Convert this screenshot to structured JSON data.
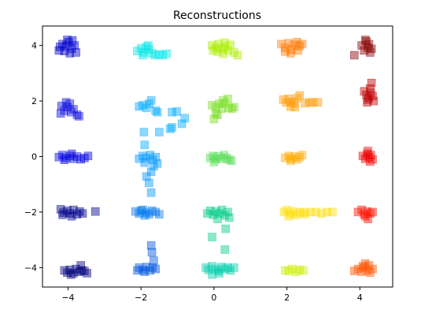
{
  "chart_data": {
    "type": "scatter",
    "title": "Reconstructions",
    "xlabel": "",
    "ylabel": "",
    "xlim": [
      -4.7,
      4.9
    ],
    "ylim": [
      -4.7,
      4.7
    ],
    "xticks": [
      -4,
      -2,
      0,
      2,
      4
    ],
    "yticks": [
      -4,
      -2,
      0,
      2,
      4
    ],
    "xtick_labels": [
      "−4",
      "−2",
      "0",
      "2",
      "4"
    ],
    "ytick_labels": [
      "−4",
      "−2",
      "0",
      "2",
      "4"
    ],
    "grid": false,
    "marker": "square",
    "marker_alpha": 0.45,
    "clusters": [
      {
        "color": "#0000cc",
        "points": [
          [
            -4.22,
            3.95
          ],
          [
            -4.15,
            4.05
          ],
          [
            -4.05,
            3.98
          ],
          [
            -3.98,
            4.12
          ],
          [
            -3.9,
            3.88
          ],
          [
            -3.82,
            4.0
          ],
          [
            -4.1,
            3.8
          ],
          [
            -3.95,
            3.72
          ],
          [
            -3.78,
            3.75
          ],
          [
            -4.25,
            3.82
          ],
          [
            -4.02,
            4.2
          ],
          [
            -3.88,
            4.18
          ]
        ]
      },
      {
        "color": "#0a0adf",
        "points": [
          [
            -4.18,
            1.82
          ],
          [
            -4.1,
            1.65
          ],
          [
            -4.02,
            1.78
          ],
          [
            -3.95,
            1.9
          ],
          [
            -3.92,
            1.6
          ],
          [
            -3.85,
            1.7
          ],
          [
            -4.2,
            1.55
          ],
          [
            -3.75,
            1.5
          ],
          [
            -3.7,
            1.45
          ],
          [
            -4.05,
            1.95
          ]
        ]
      },
      {
        "color": "#0000e0",
        "points": [
          [
            -4.25,
            -0.02
          ],
          [
            -4.15,
            0.05
          ],
          [
            -4.05,
            -0.05
          ],
          [
            -3.95,
            0.02
          ],
          [
            -3.85,
            -0.08
          ],
          [
            -3.75,
            0.0
          ],
          [
            -3.65,
            -0.1
          ],
          [
            -3.55,
            -0.05
          ],
          [
            -3.45,
            0.02
          ],
          [
            -4.1,
            -0.12
          ],
          [
            -3.9,
            0.1
          ]
        ]
      },
      {
        "color": "#00008b",
        "points": [
          [
            -4.2,
            -1.9
          ],
          [
            -4.12,
            -2.02
          ],
          [
            -4.02,
            -1.95
          ],
          [
            -3.95,
            -2.05
          ],
          [
            -3.85,
            -1.92
          ],
          [
            -3.75,
            -2.08
          ],
          [
            -3.68,
            -1.98
          ],
          [
            -3.6,
            -2.05
          ],
          [
            -4.15,
            -2.1
          ],
          [
            -3.9,
            -2.15
          ],
          [
            -3.25,
            -1.98
          ]
        ]
      },
      {
        "color": "#00007a",
        "points": [
          [
            -4.1,
            -4.1
          ],
          [
            -4.02,
            -4.18
          ],
          [
            -3.95,
            -4.08
          ],
          [
            -3.85,
            -4.2
          ],
          [
            -3.78,
            -4.05
          ],
          [
            -3.7,
            -4.15
          ],
          [
            -3.62,
            -4.1
          ],
          [
            -3.55,
            -4.12
          ],
          [
            -3.65,
            -3.92
          ],
          [
            -3.92,
            -4.25
          ],
          [
            -3.48,
            -4.2
          ]
        ]
      },
      {
        "color": "#00e6e6",
        "points": [
          [
            -2.1,
            3.8
          ],
          [
            -2.0,
            3.9
          ],
          [
            -1.92,
            3.75
          ],
          [
            -1.85,
            3.95
          ],
          [
            -1.78,
            3.85
          ],
          [
            -1.7,
            3.72
          ],
          [
            -1.62,
            3.65
          ],
          [
            -1.5,
            3.68
          ],
          [
            -1.4,
            3.65
          ],
          [
            -1.3,
            3.7
          ],
          [
            -1.95,
            3.65
          ],
          [
            -1.8,
            4.0
          ]
        ]
      },
      {
        "color": "#00aaff",
        "points": [
          [
            -2.05,
            1.8
          ],
          [
            -1.95,
            1.85
          ],
          [
            -1.85,
            1.75
          ],
          [
            -1.78,
            1.9
          ],
          [
            -1.72,
            2.02
          ],
          [
            -1.55,
            1.6
          ],
          [
            -1.15,
            1.6
          ],
          [
            -1.02,
            1.62
          ],
          [
            -0.8,
            1.38
          ],
          [
            -0.88,
            1.18
          ],
          [
            -1.15,
            1.05
          ],
          [
            -1.2,
            1.0
          ],
          [
            -1.5,
            0.88
          ],
          [
            -1.92,
            0.88
          ],
          [
            -1.9,
            0.42
          ],
          [
            -1.6,
            1.65
          ]
        ]
      },
      {
        "color": "#0096ff",
        "points": [
          [
            -2.05,
            -0.08
          ],
          [
            -1.95,
            0.02
          ],
          [
            -1.85,
            -0.05
          ],
          [
            -1.75,
            0.05
          ],
          [
            -1.68,
            -0.12
          ],
          [
            -1.6,
            -0.02
          ],
          [
            -1.55,
            -0.25
          ],
          [
            -1.65,
            -0.35
          ],
          [
            -1.9,
            -0.22
          ],
          [
            -1.72,
            -0.55
          ],
          [
            -1.85,
            -0.72
          ],
          [
            -1.78,
            -0.95
          ],
          [
            -1.72,
            -1.3
          ]
        ]
      },
      {
        "color": "#0078ee",
        "points": [
          [
            -2.15,
            -1.98
          ],
          [
            -2.05,
            -2.05
          ],
          [
            -1.95,
            -1.92
          ],
          [
            -1.85,
            -2.02
          ],
          [
            -1.78,
            -2.08
          ],
          [
            -1.7,
            -1.95
          ],
          [
            -1.6,
            -2.0
          ],
          [
            -1.5,
            -2.08
          ],
          [
            -1.9,
            -2.12
          ],
          [
            -2.0,
            -1.95
          ]
        ]
      },
      {
        "color": "#0055dd",
        "points": [
          [
            -2.05,
            -4.0
          ],
          [
            -1.95,
            -4.08
          ],
          [
            -1.85,
            -3.98
          ],
          [
            -1.75,
            -4.1
          ],
          [
            -1.68,
            -4.0
          ],
          [
            -1.6,
            -4.05
          ],
          [
            -1.65,
            -3.75
          ],
          [
            -1.7,
            -3.45
          ],
          [
            -1.72,
            -3.2
          ],
          [
            -1.9,
            -4.15
          ],
          [
            -2.1,
            -4.1
          ]
        ]
      },
      {
        "color": "#aaee00",
        "points": [
          [
            -0.05,
            4.0
          ],
          [
            0.05,
            3.92
          ],
          [
            0.12,
            4.05
          ],
          [
            0.22,
            3.88
          ],
          [
            0.3,
            3.95
          ],
          [
            0.38,
            3.82
          ],
          [
            0.45,
            4.02
          ],
          [
            0.1,
            3.78
          ],
          [
            0.25,
            3.7
          ],
          [
            0.55,
            3.75
          ],
          [
            0.65,
            3.65
          ],
          [
            -0.02,
            3.82
          ],
          [
            0.3,
            4.1
          ]
        ]
      },
      {
        "color": "#77dd22",
        "points": [
          [
            -0.05,
            1.85
          ],
          [
            0.05,
            1.78
          ],
          [
            0.15,
            1.9
          ],
          [
            0.22,
            1.72
          ],
          [
            0.3,
            1.92
          ],
          [
            0.38,
            2.08
          ],
          [
            0.4,
            1.75
          ],
          [
            0.5,
            1.72
          ],
          [
            0.55,
            1.78
          ],
          [
            0.05,
            1.55
          ],
          [
            0.0,
            1.35
          ],
          [
            0.1,
            1.5
          ],
          [
            0.25,
            2.02
          ]
        ]
      },
      {
        "color": "#55dd55",
        "points": [
          [
            -0.1,
            -0.05
          ],
          [
            -0.02,
            0.02
          ],
          [
            0.05,
            -0.1
          ],
          [
            0.12,
            0.0
          ],
          [
            0.2,
            -0.08
          ],
          [
            0.28,
            0.05
          ],
          [
            0.35,
            -0.05
          ],
          [
            0.42,
            -0.12
          ],
          [
            0.48,
            -0.15
          ],
          [
            0.0,
            -0.2
          ]
        ]
      },
      {
        "color": "#00cc88",
        "points": [
          [
            -0.18,
            -2.05
          ],
          [
            -0.1,
            -1.95
          ],
          [
            -0.02,
            -2.1
          ],
          [
            0.05,
            -1.98
          ],
          [
            0.15,
            -2.05
          ],
          [
            0.22,
            -1.92
          ],
          [
            0.3,
            -2.12
          ],
          [
            0.38,
            -2.0
          ],
          [
            0.42,
            -2.2
          ],
          [
            0.1,
            -2.25
          ],
          [
            -0.05,
            -2.9
          ],
          [
            0.32,
            -2.6
          ],
          [
            0.3,
            -3.35
          ]
        ]
      },
      {
        "color": "#00ccaa",
        "points": [
          [
            -0.22,
            -4.0
          ],
          [
            -0.15,
            -4.08
          ],
          [
            -0.05,
            -3.95
          ],
          [
            0.05,
            -4.05
          ],
          [
            0.12,
            -4.12
          ],
          [
            0.2,
            -3.98
          ],
          [
            0.3,
            -4.05
          ],
          [
            0.38,
            -4.0
          ],
          [
            0.45,
            -4.1
          ],
          [
            0.55,
            -4.0
          ],
          [
            -0.05,
            -4.25
          ],
          [
            0.15,
            -4.2
          ]
        ]
      },
      {
        "color": "#ff7700",
        "points": [
          [
            1.85,
            4.05
          ],
          [
            1.95,
            3.92
          ],
          [
            2.05,
            4.08
          ],
          [
            2.12,
            3.85
          ],
          [
            2.2,
            4.02
          ],
          [
            2.28,
            4.12
          ],
          [
            2.35,
            3.98
          ],
          [
            2.42,
            4.05
          ],
          [
            1.95,
            3.78
          ],
          [
            2.1,
            3.72
          ],
          [
            2.3,
            3.82
          ]
        ]
      },
      {
        "color": "#ff9900",
        "points": [
          [
            1.9,
            2.05
          ],
          [
            1.98,
            1.95
          ],
          [
            2.05,
            2.08
          ],
          [
            2.12,
            1.98
          ],
          [
            2.2,
            1.92
          ],
          [
            2.28,
            2.1
          ],
          [
            2.35,
            2.2
          ],
          [
            2.1,
            1.8
          ],
          [
            2.22,
            1.78
          ],
          [
            2.5,
            1.92
          ],
          [
            2.62,
            1.95
          ],
          [
            2.72,
            1.95
          ],
          [
            2.85,
            1.95
          ]
        ]
      },
      {
        "color": "#ffaa00",
        "points": [
          [
            1.95,
            -0.05
          ],
          [
            2.05,
            0.02
          ],
          [
            2.12,
            -0.08
          ],
          [
            2.2,
            0.0
          ],
          [
            2.28,
            -0.1
          ],
          [
            2.35,
            -0.02
          ],
          [
            2.42,
            0.05
          ],
          [
            2.1,
            -0.15
          ]
        ]
      },
      {
        "color": "#ffdd00",
        "points": [
          [
            1.92,
            -2.0
          ],
          [
            2.0,
            -1.92
          ],
          [
            2.1,
            -2.05
          ],
          [
            2.18,
            -1.98
          ],
          [
            2.25,
            -2.1
          ],
          [
            2.35,
            -2.02
          ],
          [
            2.45,
            -2.0
          ],
          [
            2.5,
            -2.08
          ],
          [
            2.65,
            -2.0
          ],
          [
            2.8,
            -2.0
          ],
          [
            2.95,
            -2.05
          ],
          [
            3.1,
            -2.0
          ],
          [
            3.25,
            -2.0
          ],
          [
            2.05,
            -2.15
          ]
        ]
      },
      {
        "color": "#ccee00",
        "points": [
          [
            1.95,
            -4.1
          ],
          [
            2.05,
            -4.12
          ],
          [
            2.15,
            -4.05
          ],
          [
            2.25,
            -4.15
          ],
          [
            2.35,
            -4.08
          ],
          [
            2.45,
            -4.1
          ]
        ]
      },
      {
        "color": "#880000",
        "points": [
          [
            3.85,
            3.65
          ],
          [
            4.05,
            4.0
          ],
          [
            4.12,
            3.82
          ],
          [
            4.18,
            4.15
          ],
          [
            4.22,
            3.92
          ],
          [
            4.28,
            3.75
          ],
          [
            4.32,
            3.88
          ],
          [
            4.15,
            4.2
          ],
          [
            4.25,
            4.05
          ]
        ]
      },
      {
        "color": "#bb0000",
        "points": [
          [
            4.12,
            2.35
          ],
          [
            4.18,
            2.22
          ],
          [
            4.22,
            2.05
          ],
          [
            4.25,
            2.12
          ],
          [
            4.3,
            2.3
          ],
          [
            4.35,
            2.18
          ],
          [
            4.28,
            2.45
          ],
          [
            4.32,
            2.65
          ],
          [
            4.2,
            1.95
          ],
          [
            4.38,
            2.0
          ]
        ]
      },
      {
        "color": "#ee0000",
        "points": [
          [
            4.08,
            0.02
          ],
          [
            4.15,
            -0.08
          ],
          [
            4.2,
            0.1
          ],
          [
            4.25,
            -0.02
          ],
          [
            4.3,
            0.05
          ],
          [
            4.35,
            -0.1
          ],
          [
            4.22,
            0.2
          ],
          [
            4.28,
            -0.18
          ]
        ]
      },
      {
        "color": "#ff1100",
        "points": [
          [
            3.95,
            -2.0
          ],
          [
            4.05,
            -1.92
          ],
          [
            4.12,
            -2.08
          ],
          [
            4.2,
            -1.98
          ],
          [
            4.28,
            -2.05
          ],
          [
            4.35,
            -2.0
          ],
          [
            4.15,
            -2.15
          ],
          [
            4.22,
            -2.25
          ]
        ]
      },
      {
        "color": "#ff5500",
        "points": [
          [
            3.85,
            -4.12
          ],
          [
            3.95,
            -4.05
          ],
          [
            4.05,
            -4.15
          ],
          [
            4.12,
            -4.0
          ],
          [
            4.2,
            -4.1
          ],
          [
            4.28,
            -4.18
          ],
          [
            4.35,
            -4.05
          ],
          [
            4.15,
            -3.85
          ],
          [
            4.08,
            -3.95
          ],
          [
            4.25,
            -3.92
          ]
        ]
      }
    ]
  }
}
